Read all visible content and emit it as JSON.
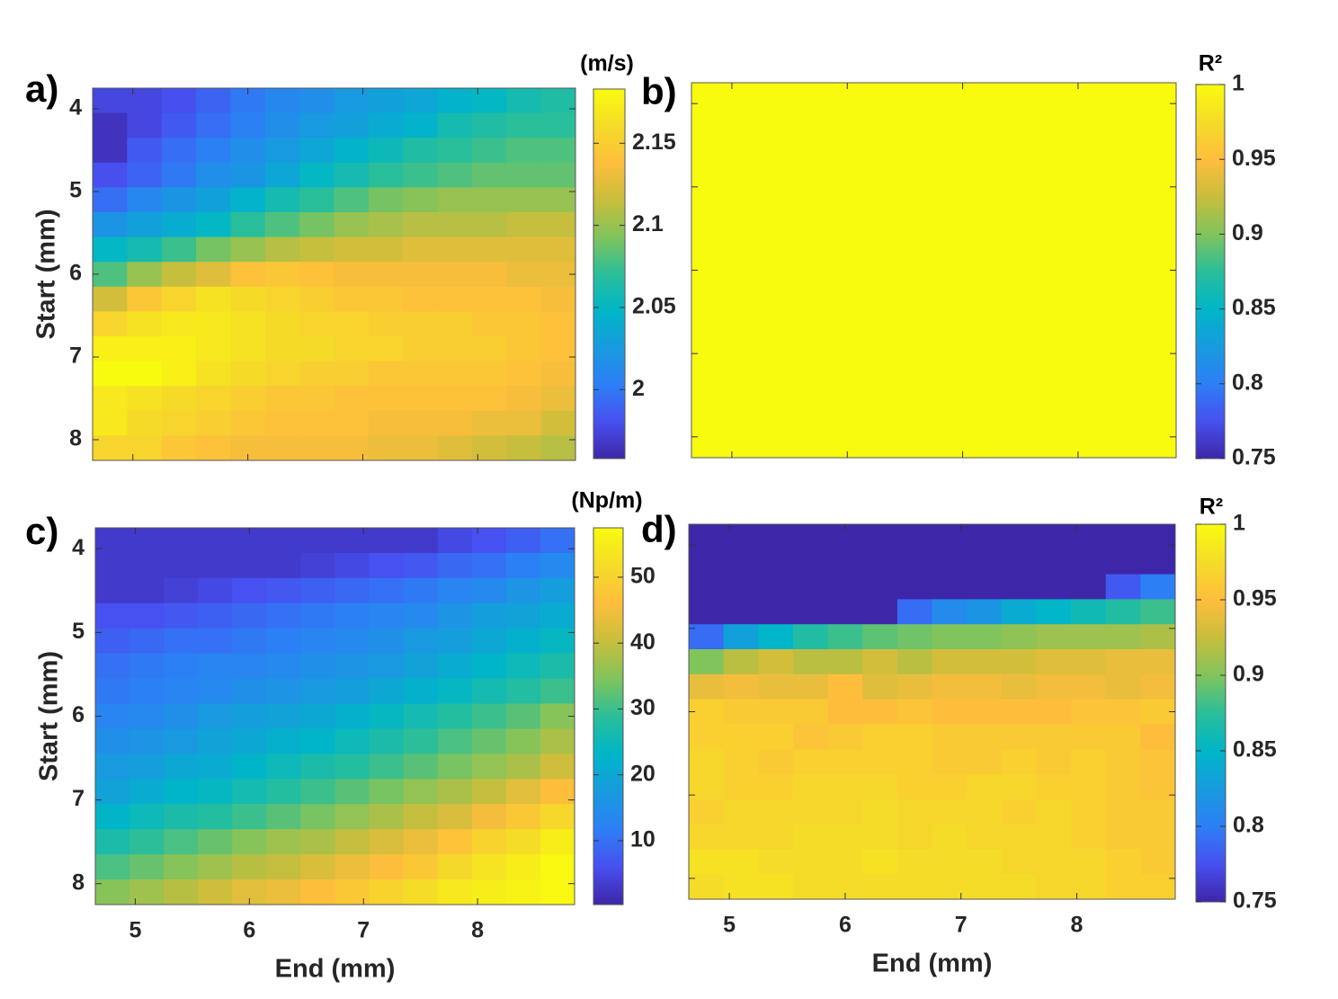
{
  "chart_data": [
    {
      "type": "heatmap",
      "label": "a)",
      "ylabel": "Start (mm)",
      "xticklabels": false,
      "yticklabels": true,
      "x": [
        4.8,
        5.1,
        5.4,
        5.7,
        6,
        6.3,
        6.6,
        6.9,
        7.2,
        7.5,
        7.8,
        8.1,
        8.4,
        8.7
      ],
      "y": [
        3.9,
        4.2,
        4.5,
        4.8,
        5.1,
        5.4,
        5.7,
        6,
        6.3,
        6.6,
        6.9,
        7.2,
        7.5,
        7.8,
        8.1
      ],
      "xlim": [
        4.65,
        8.85
      ],
      "ylim": [
        3.75,
        8.25
      ],
      "xticks": [
        5,
        6,
        7,
        8
      ],
      "yticks": [
        4,
        5,
        6,
        7,
        8
      ],
      "colorbar": {
        "title": "(m/s)",
        "clim": [
          1.958,
          2.183
        ],
        "ticks": [
          2,
          2.05,
          2.1,
          2.15
        ]
      },
      "values": [
        [
          1.975,
          1.975,
          1.98,
          1.99,
          2.0,
          2.01,
          2.015,
          2.025,
          2.03,
          2.035,
          2.045,
          2.05,
          2.06,
          2.065
        ],
        [
          1.965,
          1.975,
          1.985,
          1.995,
          2.005,
          2.015,
          2.025,
          2.03,
          2.04,
          2.045,
          2.06,
          2.065,
          2.07,
          2.07
        ],
        [
          1.965,
          1.985,
          1.995,
          2.005,
          2.015,
          2.025,
          2.035,
          2.045,
          2.055,
          2.065,
          2.07,
          2.075,
          2.08,
          2.08
        ],
        [
          1.98,
          1.99,
          2.0,
          2.015,
          2.02,
          2.035,
          2.05,
          2.06,
          2.07,
          2.075,
          2.08,
          2.085,
          2.085,
          2.085
        ],
        [
          1.995,
          2.01,
          2.02,
          2.03,
          2.045,
          2.06,
          2.07,
          2.08,
          2.09,
          2.095,
          2.1,
          2.1,
          2.1,
          2.1
        ],
        [
          2.02,
          2.03,
          2.04,
          2.05,
          2.07,
          2.08,
          2.09,
          2.1,
          2.105,
          2.11,
          2.11,
          2.11,
          2.115,
          2.115
        ],
        [
          2.05,
          2.06,
          2.075,
          2.09,
          2.1,
          2.11,
          2.115,
          2.12,
          2.12,
          2.125,
          2.125,
          2.125,
          2.125,
          2.125
        ],
        [
          2.08,
          2.1,
          2.115,
          2.125,
          2.14,
          2.145,
          2.14,
          2.135,
          2.135,
          2.135,
          2.135,
          2.135,
          2.13,
          2.13
        ],
        [
          2.12,
          2.145,
          2.155,
          2.165,
          2.16,
          2.155,
          2.15,
          2.145,
          2.145,
          2.14,
          2.14,
          2.14,
          2.14,
          2.135
        ],
        [
          2.155,
          2.165,
          2.17,
          2.17,
          2.165,
          2.16,
          2.155,
          2.155,
          2.15,
          2.15,
          2.15,
          2.145,
          2.145,
          2.14
        ],
        [
          2.175,
          2.175,
          2.175,
          2.17,
          2.165,
          2.16,
          2.16,
          2.155,
          2.155,
          2.15,
          2.15,
          2.15,
          2.145,
          2.14
        ],
        [
          2.185,
          2.185,
          2.175,
          2.165,
          2.16,
          2.155,
          2.15,
          2.15,
          2.145,
          2.145,
          2.145,
          2.145,
          2.14,
          2.135
        ],
        [
          2.17,
          2.165,
          2.16,
          2.155,
          2.15,
          2.145,
          2.145,
          2.14,
          2.14,
          2.14,
          2.14,
          2.14,
          2.135,
          2.13
        ],
        [
          2.17,
          2.16,
          2.155,
          2.15,
          2.145,
          2.14,
          2.14,
          2.14,
          2.135,
          2.135,
          2.135,
          2.13,
          2.13,
          2.12
        ],
        [
          2.155,
          2.155,
          2.145,
          2.14,
          2.135,
          2.135,
          2.135,
          2.135,
          2.13,
          2.13,
          2.125,
          2.12,
          2.115,
          2.11
        ]
      ]
    },
    {
      "type": "heatmap",
      "label": "b)",
      "xticklabels": false,
      "yticklabels": false,
      "x": [
        4.8,
        5.1,
        5.4,
        5.7,
        6,
        6.3,
        6.6,
        6.9,
        7.2,
        7.5,
        7.8,
        8.1,
        8.4,
        8.7
      ],
      "y": [
        3.9,
        4.2,
        4.5,
        4.8,
        5.1,
        5.4,
        5.7,
        6,
        6.3,
        6.6,
        6.9,
        7.2,
        7.5,
        7.8,
        8.1
      ],
      "xlim": [
        4.65,
        8.85
      ],
      "ylim": [
        3.75,
        8.25
      ],
      "xticks": [
        5,
        6,
        7,
        8
      ],
      "yticks": [
        4,
        5,
        6,
        7,
        8
      ],
      "colorbar": {
        "title": "R²",
        "clim": [
          0.75,
          1
        ],
        "ticks": [
          0.75,
          0.8,
          0.85,
          0.9,
          0.95,
          1
        ]
      },
      "values": [
        [
          1,
          1,
          1,
          1,
          1,
          1,
          1,
          1,
          1,
          1,
          1,
          1,
          1,
          1
        ],
        [
          1,
          1,
          1,
          1,
          1,
          1,
          1,
          1,
          1,
          1,
          1,
          1,
          1,
          1
        ],
        [
          1,
          1,
          1,
          1,
          1,
          1,
          1,
          1,
          1,
          1,
          1,
          1,
          1,
          1
        ],
        [
          1,
          1,
          1,
          1,
          1,
          1,
          1,
          1,
          1,
          1,
          1,
          1,
          1,
          1
        ],
        [
          1,
          1,
          1,
          1,
          1,
          1,
          1,
          1,
          1,
          1,
          1,
          1,
          1,
          1
        ],
        [
          1,
          1,
          1,
          1,
          1,
          1,
          1,
          1,
          1,
          1,
          1,
          1,
          1,
          1
        ],
        [
          1,
          1,
          1,
          1,
          1,
          1,
          1,
          1,
          1,
          1,
          1,
          1,
          1,
          1
        ],
        [
          1,
          1,
          1,
          1,
          1,
          1,
          1,
          1,
          1,
          1,
          1,
          1,
          1,
          1
        ],
        [
          1,
          1,
          1,
          1,
          1,
          1,
          1,
          1,
          1,
          1,
          1,
          1,
          1,
          1
        ],
        [
          1,
          1,
          1,
          1,
          1,
          1,
          1,
          1,
          1,
          1,
          1,
          1,
          1,
          1
        ],
        [
          1,
          1,
          1,
          1,
          1,
          1,
          1,
          1,
          1,
          1,
          1,
          1,
          1,
          1
        ],
        [
          1,
          1,
          1,
          1,
          1,
          1,
          1,
          1,
          1,
          1,
          1,
          1,
          1,
          1
        ],
        [
          1,
          1,
          1,
          1,
          1,
          1,
          1,
          1,
          1,
          1,
          1,
          1,
          1,
          1
        ],
        [
          1,
          1,
          1,
          1,
          1,
          1,
          1,
          1,
          1,
          1,
          1,
          1,
          1,
          1
        ],
        [
          1,
          1,
          1,
          1,
          1,
          1,
          1,
          1,
          1,
          1,
          1,
          1,
          1,
          1
        ]
      ]
    },
    {
      "type": "heatmap",
      "label": "c)",
      "xlabel": "End (mm)",
      "ylabel": "Start (mm)",
      "xticklabels": true,
      "yticklabels": true,
      "x": [
        4.8,
        5.1,
        5.4,
        5.7,
        6,
        6.3,
        6.6,
        6.9,
        7.2,
        7.5,
        7.8,
        8.1,
        8.4,
        8.7
      ],
      "y": [
        3.9,
        4.2,
        4.5,
        4.8,
        5.1,
        5.4,
        5.7,
        6,
        6.3,
        6.6,
        6.9,
        7.2,
        7.5,
        7.8,
        8.1
      ],
      "xlim": [
        4.65,
        8.85
      ],
      "ylim": [
        3.75,
        8.25
      ],
      "xticks": [
        5,
        6,
        7,
        8
      ],
      "yticks": [
        4,
        5,
        6,
        7,
        8
      ],
      "colorbar": {
        "title": "(Np/m)",
        "clim": [
          0.3,
          57.5
        ],
        "ticks": [
          10,
          20,
          30,
          40,
          50
        ]
      },
      "values": [
        [
          3,
          3,
          3,
          3,
          3,
          3,
          3,
          3,
          3,
          3,
          5,
          6,
          8,
          10
        ],
        [
          3,
          3,
          3,
          3,
          3,
          3,
          4,
          5,
          6,
          7,
          9,
          10,
          12,
          14
        ],
        [
          3,
          3,
          4,
          5,
          6,
          7,
          8,
          9,
          10,
          11,
          13,
          14,
          16,
          18
        ],
        [
          6,
          6,
          7,
          8,
          9,
          10,
          11,
          12,
          13,
          14,
          16,
          18,
          19,
          21
        ],
        [
          8,
          9,
          10,
          10,
          11,
          12,
          13,
          14,
          15,
          17,
          18,
          20,
          22,
          24
        ],
        [
          10,
          11,
          12,
          13,
          13,
          14,
          15,
          16,
          17,
          19,
          21,
          23,
          25,
          27
        ],
        [
          11,
          12,
          13,
          14,
          15,
          16,
          17,
          18,
          20,
          22,
          24,
          26,
          28,
          30
        ],
        [
          13,
          14,
          15,
          17,
          18,
          19,
          20,
          22,
          24,
          26,
          28,
          30,
          32,
          35
        ],
        [
          15,
          16,
          17,
          19,
          20,
          22,
          23,
          25,
          27,
          29,
          31,
          33,
          35,
          38
        ],
        [
          17,
          18,
          20,
          21,
          23,
          25,
          27,
          28,
          30,
          32,
          34,
          36,
          38,
          41
        ],
        [
          19,
          21,
          23,
          24,
          26,
          28,
          30,
          32,
          34,
          36,
          38,
          40,
          43,
          46
        ],
        [
          23,
          25,
          27,
          28,
          30,
          32,
          34,
          36,
          38,
          40,
          42,
          45,
          48,
          51
        ],
        [
          27,
          29,
          31,
          33,
          35,
          37,
          38,
          40,
          42,
          44,
          47,
          50,
          52,
          55
        ],
        [
          31,
          33,
          35,
          37,
          39,
          40,
          42,
          44,
          46,
          48,
          51,
          53,
          55,
          57
        ],
        [
          35,
          37,
          39,
          41,
          43,
          44,
          46,
          48,
          50,
          52,
          54,
          55,
          56,
          57
        ]
      ]
    },
    {
      "type": "heatmap",
      "label": "d)",
      "xlabel": "End (mm)",
      "xticklabels": true,
      "yticklabels": false,
      "x": [
        4.8,
        5.1,
        5.4,
        5.7,
        6,
        6.3,
        6.6,
        6.9,
        7.2,
        7.5,
        7.8,
        8.1,
        8.4,
        8.7
      ],
      "y": [
        3.9,
        4.2,
        4.5,
        4.8,
        5.1,
        5.4,
        5.7,
        6,
        6.3,
        6.6,
        6.9,
        7.2,
        7.5,
        7.8,
        8.1
      ],
      "xlim": [
        4.65,
        8.85
      ],
      "ylim": [
        3.75,
        8.25
      ],
      "xticks": [
        5,
        6,
        7,
        8
      ],
      "yticks": [
        4,
        5,
        6,
        7,
        8
      ],
      "colorbar": {
        "title": "R²",
        "clim": [
          0.75,
          1
        ],
        "ticks": [
          0.75,
          0.8,
          0.85,
          0.9,
          0.95,
          1
        ]
      },
      "values": [
        [
          0.75,
          0.75,
          0.75,
          0.75,
          0.75,
          0.75,
          0.75,
          0.75,
          0.75,
          0.75,
          0.75,
          0.75,
          0.75,
          0.75
        ],
        [
          0.75,
          0.75,
          0.75,
          0.75,
          0.75,
          0.75,
          0.75,
          0.75,
          0.75,
          0.75,
          0.75,
          0.75,
          0.75,
          0.75
        ],
        [
          0.75,
          0.75,
          0.75,
          0.75,
          0.75,
          0.75,
          0.75,
          0.75,
          0.75,
          0.75,
          0.75,
          0.75,
          0.78,
          0.8
        ],
        [
          0.75,
          0.75,
          0.75,
          0.75,
          0.75,
          0.75,
          0.79,
          0.81,
          0.82,
          0.84,
          0.85,
          0.86,
          0.87,
          0.88
        ],
        [
          0.79,
          0.83,
          0.85,
          0.87,
          0.88,
          0.89,
          0.895,
          0.9,
          0.9,
          0.905,
          0.91,
          0.91,
          0.91,
          0.915
        ],
        [
          0.9,
          0.92,
          0.93,
          0.92,
          0.92,
          0.93,
          0.92,
          0.93,
          0.93,
          0.93,
          0.935,
          0.935,
          0.94,
          0.94
        ],
        [
          0.94,
          0.945,
          0.94,
          0.94,
          0.95,
          0.935,
          0.94,
          0.945,
          0.945,
          0.94,
          0.945,
          0.945,
          0.94,
          0.945
        ],
        [
          0.965,
          0.96,
          0.96,
          0.96,
          0.95,
          0.95,
          0.955,
          0.95,
          0.95,
          0.95,
          0.95,
          0.955,
          0.955,
          0.96
        ],
        [
          0.965,
          0.965,
          0.965,
          0.955,
          0.96,
          0.965,
          0.965,
          0.96,
          0.96,
          0.96,
          0.96,
          0.96,
          0.96,
          0.95
        ],
        [
          0.97,
          0.965,
          0.96,
          0.965,
          0.965,
          0.965,
          0.965,
          0.96,
          0.96,
          0.965,
          0.96,
          0.965,
          0.96,
          0.955
        ],
        [
          0.97,
          0.965,
          0.965,
          0.97,
          0.97,
          0.97,
          0.965,
          0.965,
          0.97,
          0.97,
          0.965,
          0.965,
          0.96,
          0.955
        ],
        [
          0.965,
          0.97,
          0.97,
          0.97,
          0.97,
          0.975,
          0.97,
          0.97,
          0.97,
          0.965,
          0.97,
          0.965,
          0.96,
          0.96
        ],
        [
          0.97,
          0.97,
          0.97,
          0.975,
          0.975,
          0.975,
          0.97,
          0.975,
          0.97,
          0.97,
          0.97,
          0.965,
          0.96,
          0.96
        ],
        [
          0.98,
          0.98,
          0.975,
          0.975,
          0.975,
          0.98,
          0.975,
          0.975,
          0.975,
          0.97,
          0.97,
          0.97,
          0.965,
          0.96
        ],
        [
          0.975,
          0.98,
          0.98,
          0.975,
          0.975,
          0.975,
          0.975,
          0.975,
          0.975,
          0.975,
          0.97,
          0.97,
          0.965,
          0.965
        ]
      ]
    }
  ]
}
